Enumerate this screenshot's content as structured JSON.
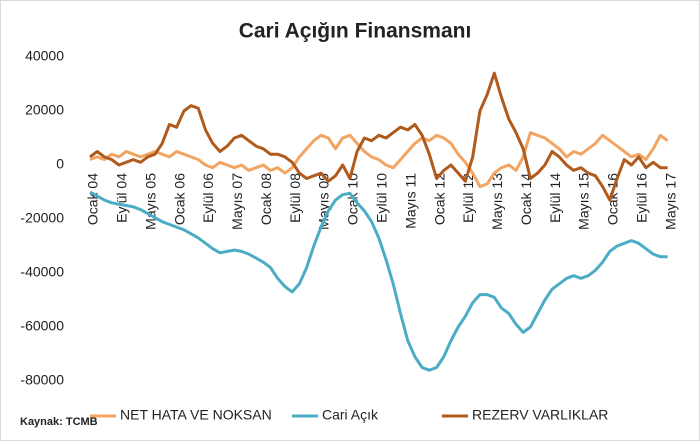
{
  "chart_data": {
    "type": "line",
    "title": "Cari Açığın Finansmanı",
    "source": "Kaynak: TCMB",
    "categories": [
      "Ocak 04",
      null,
      null,
      null,
      "Eylül 04",
      null,
      null,
      null,
      "Mayıs 05",
      null,
      null,
      null,
      "Ocak 06",
      null,
      null,
      null,
      "Eylül 06",
      null,
      null,
      null,
      "Mayıs 07",
      null,
      null,
      null,
      "Ocak 08",
      null,
      null,
      null,
      "Eylül 08",
      null,
      null,
      null,
      "Mayıs 09",
      null,
      null,
      null,
      "Ocak 10",
      null,
      null,
      null,
      "Eylül 10",
      null,
      null,
      null,
      "Mayıs 11",
      null,
      null,
      null,
      "Ocak 12",
      null,
      null,
      null,
      "Eylül 12",
      null,
      null,
      null,
      "Mayıs 13",
      null,
      null,
      null,
      "Ocak 14",
      null,
      null,
      null,
      "Eylül 14",
      null,
      null,
      null,
      "Mayıs 15",
      null,
      null,
      null,
      "Ocak 16",
      null,
      null,
      null,
      "Eylül 16",
      null,
      null,
      null,
      "Mayıs 17"
    ],
    "series": [
      {
        "name": "NET HATA VE NOKSAN",
        "color": "#f2a462",
        "values": [
          2000,
          3000,
          2000,
          4000,
          3000,
          5000,
          4000,
          3000,
          4000,
          5000,
          4000,
          3000,
          5000,
          4000,
          3000,
          2000,
          0,
          -1000,
          1000,
          0,
          -1000,
          0,
          -2000,
          -1000,
          0,
          -2000,
          -1000,
          -3000,
          -1000,
          3000,
          6000,
          9000,
          11000,
          10000,
          6000,
          10000,
          11000,
          8000,
          5000,
          3000,
          2000,
          0,
          -1000,
          2000,
          5000,
          8000,
          10000,
          9000,
          11000,
          10000,
          8000,
          4000,
          1000,
          -3000,
          -8000,
          -7000,
          -3000,
          -1000,
          0,
          -2000,
          3000,
          12000,
          11000,
          10000,
          8000,
          6000,
          3000,
          5000,
          4000,
          6000,
          8000,
          11000,
          9000,
          7000,
          5000,
          3000,
          4000,
          2000,
          6000,
          11000,
          9000
        ]
      },
      {
        "name": "Cari Açık",
        "color": "#4bacc6",
        "values": [
          -10000,
          -11500,
          -13000,
          -14000,
          -14500,
          -15000,
          -15500,
          -16500,
          -18000,
          -19500,
          -21000,
          -22000,
          -23000,
          -24000,
          -25500,
          -27000,
          -29000,
          -31000,
          -32500,
          -32000,
          -31500,
          -32000,
          -33000,
          -34500,
          -36000,
          -38000,
          -42000,
          -45000,
          -47000,
          -44000,
          -38000,
          -30000,
          -23000,
          -17000,
          -13000,
          -11000,
          -10500,
          -14000,
          -17000,
          -21000,
          -27000,
          -35000,
          -44000,
          -55000,
          -65000,
          -71000,
          -75000,
          -76000,
          -75000,
          -71000,
          -65000,
          -60000,
          -56000,
          -51000,
          -48000,
          -48000,
          -49000,
          -53000,
          -55000,
          -59000,
          -62000,
          -60000,
          -55000,
          -50000,
          -46000,
          -44000,
          -42000,
          -41000,
          -42000,
          -41000,
          -39000,
          -36000,
          -32000,
          -30000,
          -29000,
          -28000,
          -29000,
          -31000,
          -33000,
          -34000,
          -34000
        ]
      },
      {
        "name": "REZERV VARLIKLAR",
        "color": "#b05a1c",
        "values": [
          3000,
          5000,
          3000,
          2000,
          0,
          1000,
          2000,
          1000,
          3000,
          4000,
          8000,
          15000,
          14000,
          20000,
          22000,
          21000,
          13000,
          8000,
          5000,
          7000,
          10000,
          11000,
          9000,
          7000,
          6000,
          4000,
          4000,
          3000,
          1000,
          -3000,
          -5000,
          -4000,
          -3000,
          -6000,
          -4000,
          0,
          -5000,
          5000,
          10000,
          9000,
          11000,
          10000,
          12000,
          14000,
          13000,
          15000,
          11000,
          4000,
          -5000,
          -2000,
          0,
          -3000,
          -6000,
          3000,
          20000,
          26000,
          34000,
          25000,
          17000,
          12000,
          6000,
          -5000,
          -3000,
          0,
          5000,
          3000,
          0,
          -2000,
          -1000,
          -3000,
          -4000,
          -8000,
          -13000,
          -5000,
          2000,
          0,
          3000,
          -1000,
          1000,
          -1000,
          -1000
        ]
      }
    ],
    "ylim": [
      -80000,
      40000
    ],
    "yticks": [
      -80000,
      -60000,
      -40000,
      -20000,
      0,
      20000,
      40000
    ],
    "grid": false,
    "legend": "bottom"
  }
}
